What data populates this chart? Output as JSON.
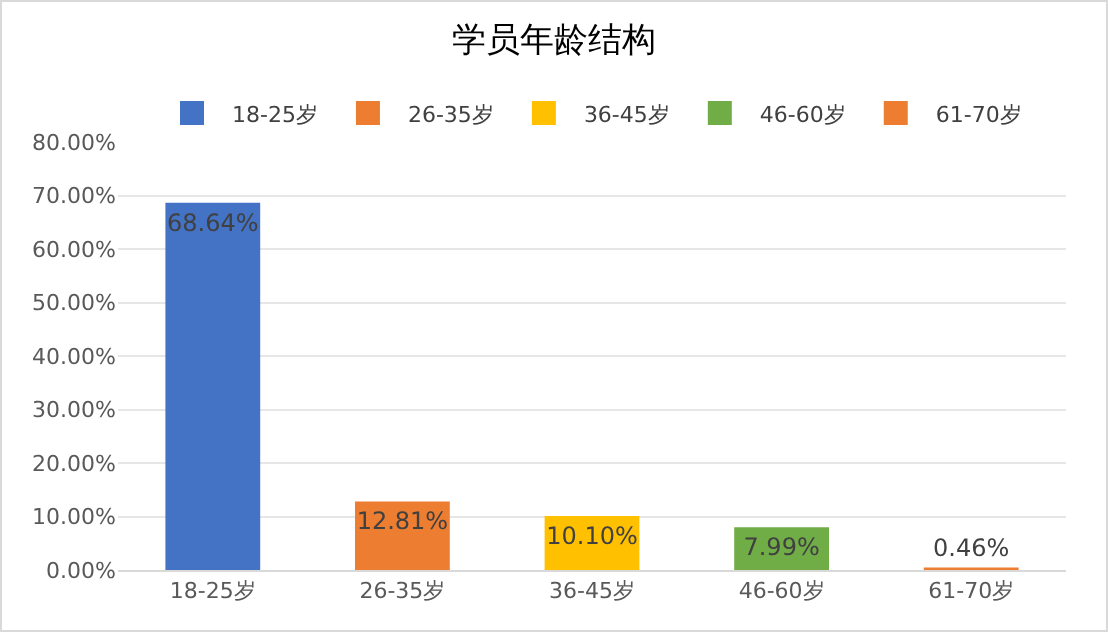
{
  "chart_data": {
    "type": "bar",
    "title": "学员年龄结构",
    "categories": [
      "18-25岁",
      "26-35岁",
      "36-45岁",
      "46-60岁",
      "61-70岁"
    ],
    "series": [
      {
        "name": "18-25岁",
        "color": "#4472c4",
        "values": [
          68.64,
          null,
          null,
          null,
          null
        ],
        "value_labels": [
          "68.64%",
          null,
          null,
          null,
          null
        ]
      },
      {
        "name": "26-35岁",
        "color": "#ed7d31",
        "values": [
          null,
          12.81,
          null,
          null,
          null
        ],
        "value_labels": [
          null,
          "12.81%",
          null,
          null,
          null
        ]
      },
      {
        "name": "36-45岁",
        "color": "#ffc000",
        "values": [
          null,
          null,
          10.1,
          null,
          null
        ],
        "value_labels": [
          null,
          null,
          "10.10%",
          null,
          null
        ]
      },
      {
        "name": "46-60岁",
        "color": "#70ad47",
        "values": [
          null,
          null,
          null,
          7.99,
          null
        ],
        "value_labels": [
          null,
          null,
          null,
          "7.99%",
          null
        ]
      },
      {
        "name": "61-70岁",
        "color": "#ed7d31",
        "values": [
          null,
          null,
          null,
          null,
          0.46
        ],
        "value_labels": [
          null,
          null,
          null,
          null,
          "0.46%"
        ]
      }
    ],
    "ylim": [
      0,
      80
    ],
    "yticks": [
      {
        "value": 0,
        "label": "0.00%"
      },
      {
        "value": 10,
        "label": "10.00%"
      },
      {
        "value": 20,
        "label": "20.00%"
      },
      {
        "value": 30,
        "label": "30.00%"
      },
      {
        "value": 40,
        "label": "40.00%"
      },
      {
        "value": 50,
        "label": "50.00%"
      },
      {
        "value": 60,
        "label": "60.00%"
      },
      {
        "value": 70,
        "label": "70.00%"
      },
      {
        "value": 80,
        "label": "80.00%"
      }
    ],
    "grid": "y",
    "legend": "top"
  }
}
